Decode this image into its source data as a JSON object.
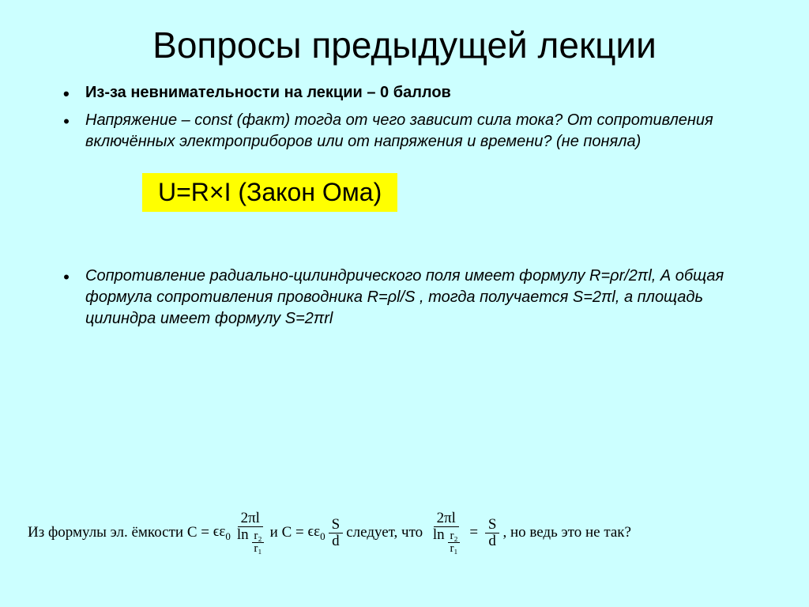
{
  "slide": {
    "title": "Вопросы предыдущей лекции",
    "background_color": "#ccffff",
    "text_color": "#000000",
    "title_fontsize": 46,
    "body_fontsize": 20,
    "bullets": {
      "b1": "Из-за невнимательности на лекции – 0 баллов",
      "b2": "Напряжение – const (факт) тогда от чего зависит сила тока? От сопротивления включённых электроприборов или от напряжения и времени? (не поняла)",
      "b3": "Сопротивление радиально-цилиндрического поля имеет формулу R=ρr/2πl, А общая формула сопротивления проводника R=ρl/S , тогда получается   S=2πl, а площадь цилиндра имеет формулу   S=2πrl"
    },
    "formula_box": {
      "text": "U=R×I     (Закон Ома)",
      "background_color": "#ffff00",
      "fontsize": 32
    },
    "math_line": {
      "prefix": "Из формулы эл. ёмкости C =",
      "epsilon": "ϵε",
      "epsilon_sub": "0",
      "frac1_num": "2πl",
      "frac1_den_ln": "ln",
      "frac1_den_r2": "r₂",
      "frac1_den_r1": "r₁",
      "middle1": "  и C =",
      "frac2_num": "S",
      "frac2_den": "d",
      "middle2": "  следует, что",
      "suffix": " , но ведь это не так?",
      "font_family": "Cambria Math",
      "fontsize": 19
    }
  }
}
